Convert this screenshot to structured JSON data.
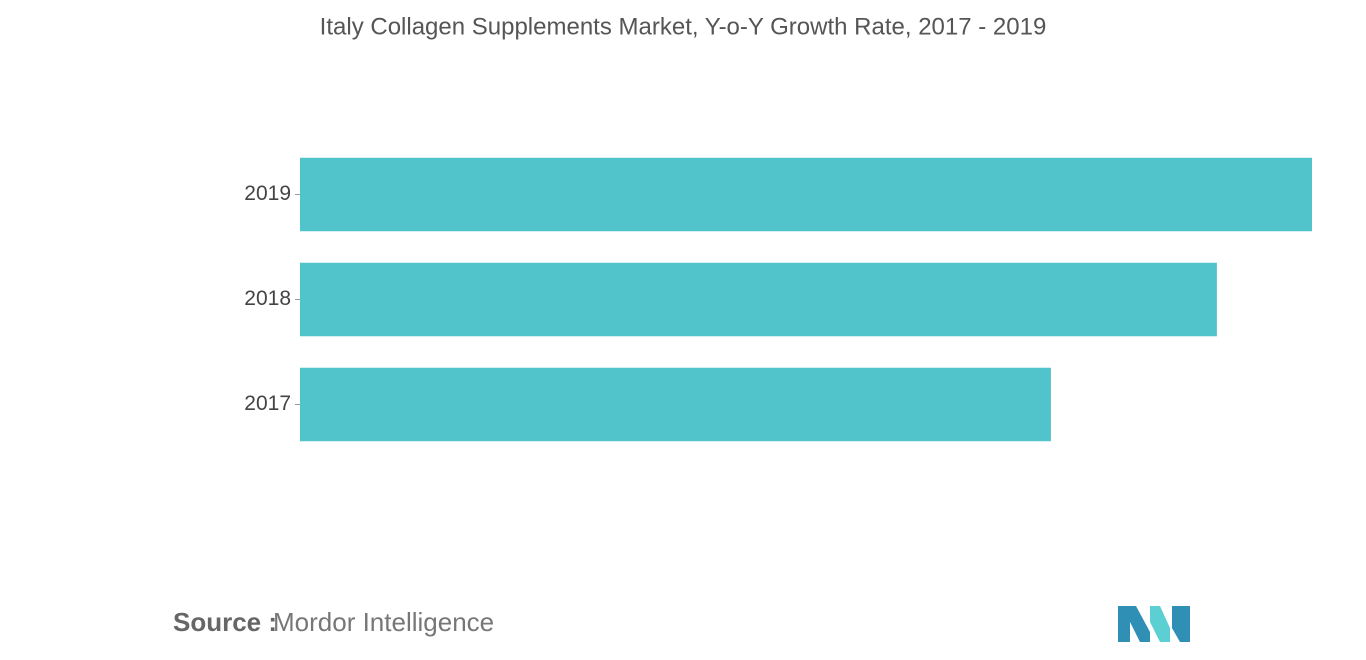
{
  "chart_data": {
    "type": "barh",
    "title": "Italy Collagen Supplements Market, Y-o-Y Growth Rate, 2017 - 2019",
    "categories": [
      "2017",
      "2018",
      "2019"
    ],
    "values": [
      74.2,
      90.6,
      100
    ],
    "color": "#51c3ca",
    "xlim": [
      0,
      100
    ]
  },
  "footer": {
    "source_label": "Source :",
    "source": "Mordor Intelligence"
  }
}
